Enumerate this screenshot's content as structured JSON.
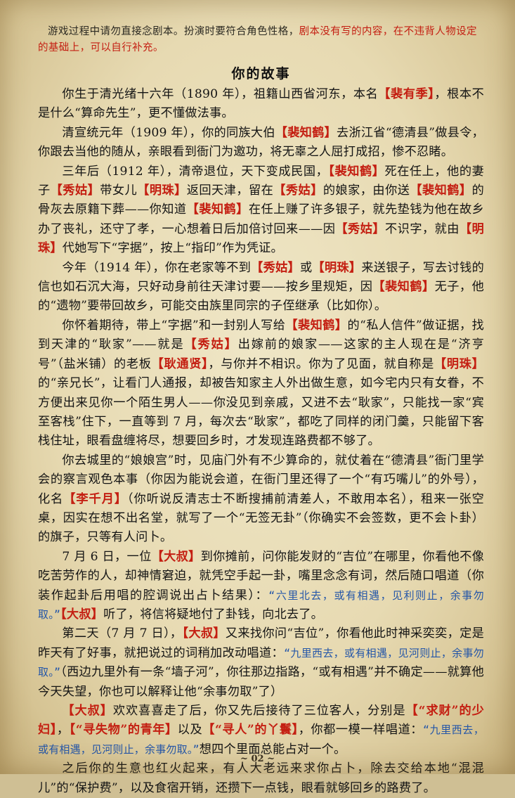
{
  "note": {
    "part1": "游戏过程中请勿直接念剧本。扮演时要符合角色性格，",
    "part2_red": "剧本没有写的内容，在不违背人物设定的基础上，可以自行补充。"
  },
  "title": "你的故事",
  "p1": {
    "a": "你生于清光绪十六年（1890 年），祖籍山西省河东，本名",
    "n1": "【裴有季】",
    "b": "，根本不是什么“算命先生”，更不懂做法事。"
  },
  "p2": {
    "a": "清宣统元年（1909 年），你的同族大伯",
    "n1": "【裴知鹤】",
    "b": "去浙江省“德清县”做县令，你跟去当他的随从，亲眼看到衙门为邀功，将无辜之人屈打成招，惨不忍睹。"
  },
  "p3": {
    "a": "三年后（1912 年），清帝退位，天下变成民国，",
    "n1": "【裴知鹤】",
    "b": "死在任上，他的妻子",
    "n2": "【秀姑】",
    "c": "带女儿",
    "n3": "【明珠】",
    "d": "返回天津，留在",
    "n4": "【秀姑】",
    "e": "的娘家，由你送",
    "n5": "【裴知鹤】",
    "f": "的骨灰去原籍下葬——你知道",
    "n6": "【裴知鹤】",
    "g": "在任上赚了许多银子，就先垫钱为他在故乡办了丧礼，还守了孝，一心想着日后加倍讨回来——因",
    "n7": "【秀姑】",
    "h": "不识字，就由",
    "n8": "【明珠】",
    "i": "代她写下“字据”，按上“指印”作为凭证。"
  },
  "p4": {
    "a": "今年（1914 年），你在老家等不到",
    "n1": "【秀姑】",
    "b": "或",
    "n2": "【明珠】",
    "c": "来送银子，写去讨钱的信也如石沉大海，只好动身前往天津讨要——按乡里规矩，因",
    "n3": "【裴知鹤】",
    "d": "无子，他的“遗物”要带回故乡，可能交由族里同宗的子侄继承（比如你）。"
  },
  "p5": {
    "a": "你怀着期待，带上“字据”和一封别人写给",
    "n1": "【裴知鹤】",
    "b": "的“私人信件”做证据，找到天津的“耿家”——就是",
    "n2": "【秀姑】",
    "c": "出嫁前的娘家——这家的主人现在是“济亨号”（盐米铺）的老板",
    "n3": "【耿通贤】",
    "d": "，与你并不相识。你为了见面，就自称是",
    "n4": "【明珠】",
    "e": "的“亲兄长”，让看门人通报，却被告知家主人外出做生意，如今宅内只有女眷，不方便出来见你一个陌生男人——你没见到亲戚，又进不去“耿家”，只能找一家“宾至客栈”住下，一直等到 7 月，每次去“耿家”，都吃了同样的闭门羹，只能留下客栈住址，眼看盘缠将尽，想要回乡时，才发现连路费都不够了。"
  },
  "p6": {
    "a": "你去城里的“娘娘宫”时，见庙门外有不少算命的，就仗着在“德清县”衙门里学会的察言观色本事（你因为能说会道，在衙门里还得了一个“有巧嘴儿”的外号），化名",
    "n1": "【李千月】",
    "b": "（你听说反清志士不断搜捕前清差人，不敢用本名），租来一张空桌，因实在想不出名堂，就写了一个“无签无卦”（你确实不会签数，更不会卜卦）的旗子，只等有人问卜。"
  },
  "p7": {
    "a": "7 月 6 日，一位",
    "n1": "【大叔】",
    "b": "到你摊前，问你能发财的“吉位”在哪里，你看他不像吃苦劳作的人，却神情窘迫，就凭空手起一卦，嘴里念念有词，然后随口唱道（你装作起卦后用唱的腔调说出占卜结果）：",
    "chant": "“六里北去，或有相遇，见利则止，余事勿取。”",
    "n2": "【大叔】",
    "c": "听了，将信将疑地付了卦钱，向北去了。"
  },
  "p8": {
    "a": "第二天（7 月 7 日），",
    "n1": "【大叔】",
    "b": "又来找你问“吉位”，你看他此时神采奕奕，定是昨天有了好事，就把说过的词稍加改动唱道：",
    "chant": "“九里西去，或有相遇，见河则止，余事勿取。”",
    "c": "（西边九里外有一条“墙子河”，你往那边指路，“或有相遇”并不确定——就算他今天失望，你也可以解释让他“余事勿取”了）"
  },
  "p9": {
    "n1": "【大叔】",
    "a": "欢欢喜喜走了后，你又先后接待了三位客人，分别是",
    "n2": "【“求财”的少妇】",
    "b": "，",
    "n3": "【“寻失物”的青年】",
    "c": "以及",
    "n4": "【“寻人”的丫鬟】",
    "d": "，你都一模一样唱道：",
    "chant": "“九里西去，或有相遇，见河则止，余事勿取。”",
    "e": "想四个里面总能占对一个。"
  },
  "p10": {
    "a": "之后你的生意也红火起来，有人大老远来求你占卜，除去交给本地“混混儿”的“保护费”，以及食宿开销，还攒下一点钱，眼看就够回乡的路费了。"
  },
  "page_number": "~ 02 ~"
}
